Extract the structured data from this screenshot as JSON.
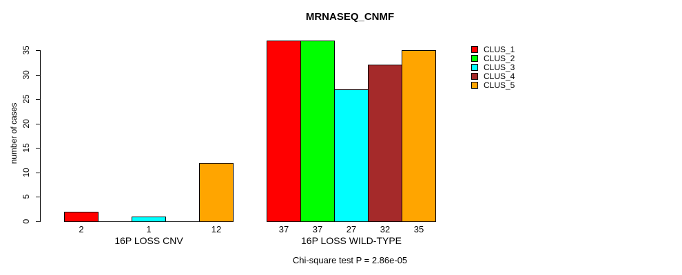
{
  "chart_data": {
    "type": "bar",
    "title": "MRNASEQ_CNMF",
    "ylabel": "number of cases",
    "caption": "Chi-square test P = 2.86e-05",
    "ylim": [
      0,
      35
    ],
    "yticks": [
      0,
      5,
      10,
      15,
      20,
      25,
      30,
      35
    ],
    "grid": false,
    "legend_position": "right",
    "series": [
      {
        "name": "CLUS_1",
        "color": "#FF0000"
      },
      {
        "name": "CLUS_2",
        "color": "#00FF00"
      },
      {
        "name": "CLUS_3",
        "color": "#00FFFF"
      },
      {
        "name": "CLUS_4",
        "color": "#A52A2A"
      },
      {
        "name": "CLUS_5",
        "color": "#FFA500"
      }
    ],
    "groups": [
      {
        "label": "16P LOSS CNV",
        "values": [
          2,
          0,
          1,
          0,
          12
        ],
        "bar_labels": [
          "2",
          "",
          "1",
          "",
          "12"
        ]
      },
      {
        "label": "16P LOSS WILD-TYPE",
        "values": [
          37,
          37,
          27,
          32,
          35
        ],
        "bar_labels": [
          "37",
          "37",
          "27",
          "32",
          "35"
        ]
      }
    ]
  }
}
